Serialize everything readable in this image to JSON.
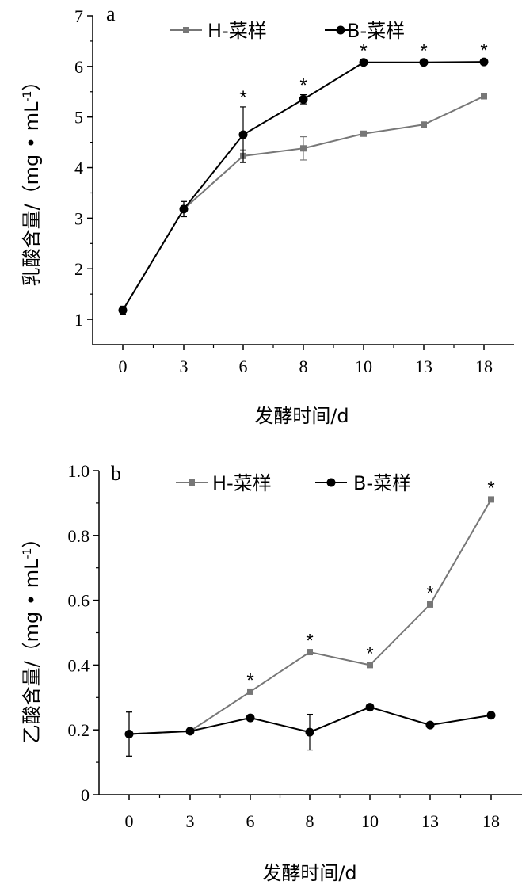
{
  "chart_data": [
    {
      "panel": "a",
      "type": "line",
      "categories": [
        "0",
        "3",
        "6",
        "8",
        "10",
        "13",
        "18"
      ],
      "xlabel": "发酵时间/d",
      "ylabel": "乳酸含量/（mg • mL-1）",
      "ylabel_main": "乳酸含量/（mg • mL",
      "ylabel_sup": "-1",
      "ylabel_close": "）",
      "ylim": [
        0.5,
        7
      ],
      "yticks": [
        "1",
        "2",
        "3",
        "4",
        "5",
        "6",
        "7"
      ],
      "grid": false,
      "legend_position": "top",
      "series": [
        {
          "name": "H-菜样",
          "color": "#777777",
          "marker": "square",
          "values": [
            1.18,
            3.18,
            4.23,
            4.38,
            4.67,
            4.85,
            5.41
          ],
          "errors": [
            0.08,
            0.15,
            0.12,
            0.23,
            0.04,
            0.04,
            0.04
          ]
        },
        {
          "name": "B-菜样",
          "color": "#000000",
          "marker": "circle",
          "values": [
            1.18,
            3.18,
            4.65,
            5.35,
            6.08,
            6.08,
            6.09
          ],
          "errors": [
            0.08,
            0.15,
            0.55,
            0.09,
            0.04,
            0.04,
            0.04
          ]
        }
      ],
      "significance": [
        false,
        false,
        true,
        true,
        true,
        true,
        true
      ],
      "significance_mark": "*"
    },
    {
      "panel": "b",
      "type": "line",
      "categories": [
        "0",
        "3",
        "6",
        "8",
        "10",
        "13",
        "18"
      ],
      "xlabel": "发酵时间/d",
      "ylabel": "乙酸含量/（mg • mL-1）",
      "ylabel_main": "乙酸含量/（mg • mL",
      "ylabel_sup": "-1",
      "ylabel_close": "）",
      "ylim": [
        0,
        1.0
      ],
      "yticks": [
        "0",
        "0.2",
        "0.4",
        "0.6",
        "0.8",
        "1.0"
      ],
      "grid": false,
      "legend_position": "top",
      "series": [
        {
          "name": "H-菜样",
          "color": "#777777",
          "marker": "square",
          "values": [
            0.187,
            0.196,
            0.318,
            0.44,
            0.4,
            0.587,
            0.911
          ],
          "errors": [
            0.068,
            0.004,
            0.006,
            0.006,
            0.006,
            0.006,
            0.006
          ]
        },
        {
          "name": "B-菜样",
          "color": "#000000",
          "marker": "circle",
          "values": [
            0.187,
            0.196,
            0.237,
            0.193,
            0.27,
            0.215,
            0.245
          ],
          "errors": [
            0.068,
            0.004,
            0.005,
            0.055,
            0.005,
            0.005,
            0.005
          ]
        }
      ],
      "significance": [
        false,
        false,
        true,
        true,
        true,
        true,
        true
      ],
      "significance_mark": "*"
    }
  ]
}
